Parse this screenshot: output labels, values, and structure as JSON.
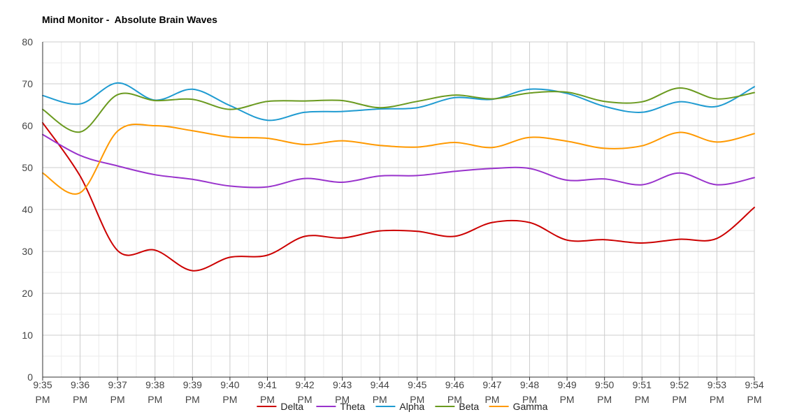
{
  "chart_data": {
    "type": "line",
    "title": "Mind Monitor -  Absolute Brain Waves",
    "xlabel": "",
    "ylabel": "",
    "ylim": [
      0,
      80
    ],
    "yticks": [
      0,
      10,
      20,
      30,
      40,
      50,
      60,
      70,
      80
    ],
    "grid": true,
    "legend_position": "bottom",
    "x": [
      {
        "t": "9:35",
        "p": "PM"
      },
      {
        "t": "9:36",
        "p": "PM"
      },
      {
        "t": "9:37",
        "p": "PM"
      },
      {
        "t": "9:38",
        "p": "PM"
      },
      {
        "t": "9:39",
        "p": "PM"
      },
      {
        "t": "9:40",
        "p": "PM"
      },
      {
        "t": "9:41",
        "p": "PM"
      },
      {
        "t": "9:42",
        "p": "PM"
      },
      {
        "t": "9:43",
        "p": "PM"
      },
      {
        "t": "9:44",
        "p": "PM"
      },
      {
        "t": "9:45",
        "p": "PM"
      },
      {
        "t": "9:46",
        "p": "PM"
      },
      {
        "t": "9:47",
        "p": "PM"
      },
      {
        "t": "9:48",
        "p": "PM"
      },
      {
        "t": "9:49",
        "p": "PM"
      },
      {
        "t": "9:50",
        "p": "PM"
      },
      {
        "t": "9:51",
        "p": "PM"
      },
      {
        "t": "9:52",
        "p": "PM"
      },
      {
        "t": "9:53",
        "p": "PM"
      },
      {
        "t": "9:54",
        "p": "PM"
      }
    ],
    "series": [
      {
        "name": "Delta",
        "color": "#cc0000",
        "values": [
          60.7,
          48.0,
          30.2,
          30.3,
          25.4,
          28.6,
          29.1,
          33.6,
          33.2,
          34.9,
          34.8,
          33.6,
          36.9,
          36.9,
          32.7,
          32.8,
          32.0,
          32.9,
          33.1,
          40.5
        ]
      },
      {
        "name": "Theta",
        "color": "#9933cc",
        "values": [
          57.9,
          52.9,
          50.4,
          48.3,
          47.2,
          45.6,
          45.4,
          47.4,
          46.5,
          48.0,
          48.1,
          49.1,
          49.8,
          49.8,
          47.0,
          47.3,
          45.9,
          48.7,
          45.9,
          47.6
        ]
      },
      {
        "name": "Alpha",
        "color": "#1f9bd1",
        "values": [
          67.2,
          65.2,
          70.2,
          66.1,
          68.7,
          64.8,
          61.3,
          63.2,
          63.4,
          64.0,
          64.3,
          66.7,
          66.3,
          68.7,
          67.7,
          64.6,
          63.2,
          65.7,
          64.6,
          69.3
        ]
      },
      {
        "name": "Beta",
        "color": "#6a9a1f",
        "values": [
          63.9,
          58.5,
          67.4,
          66.0,
          66.3,
          63.9,
          65.8,
          65.9,
          66.0,
          64.3,
          65.8,
          67.3,
          66.4,
          67.8,
          68.0,
          65.8,
          65.7,
          69.0,
          66.4,
          67.9
        ]
      },
      {
        "name": "Gamma",
        "color": "#ff9900",
        "values": [
          48.7,
          44.0,
          58.7,
          60.0,
          58.8,
          57.3,
          57.0,
          55.5,
          56.4,
          55.3,
          54.9,
          56.0,
          54.8,
          57.2,
          56.3,
          54.6,
          55.2,
          58.4,
          56.1,
          58.1
        ]
      }
    ]
  }
}
